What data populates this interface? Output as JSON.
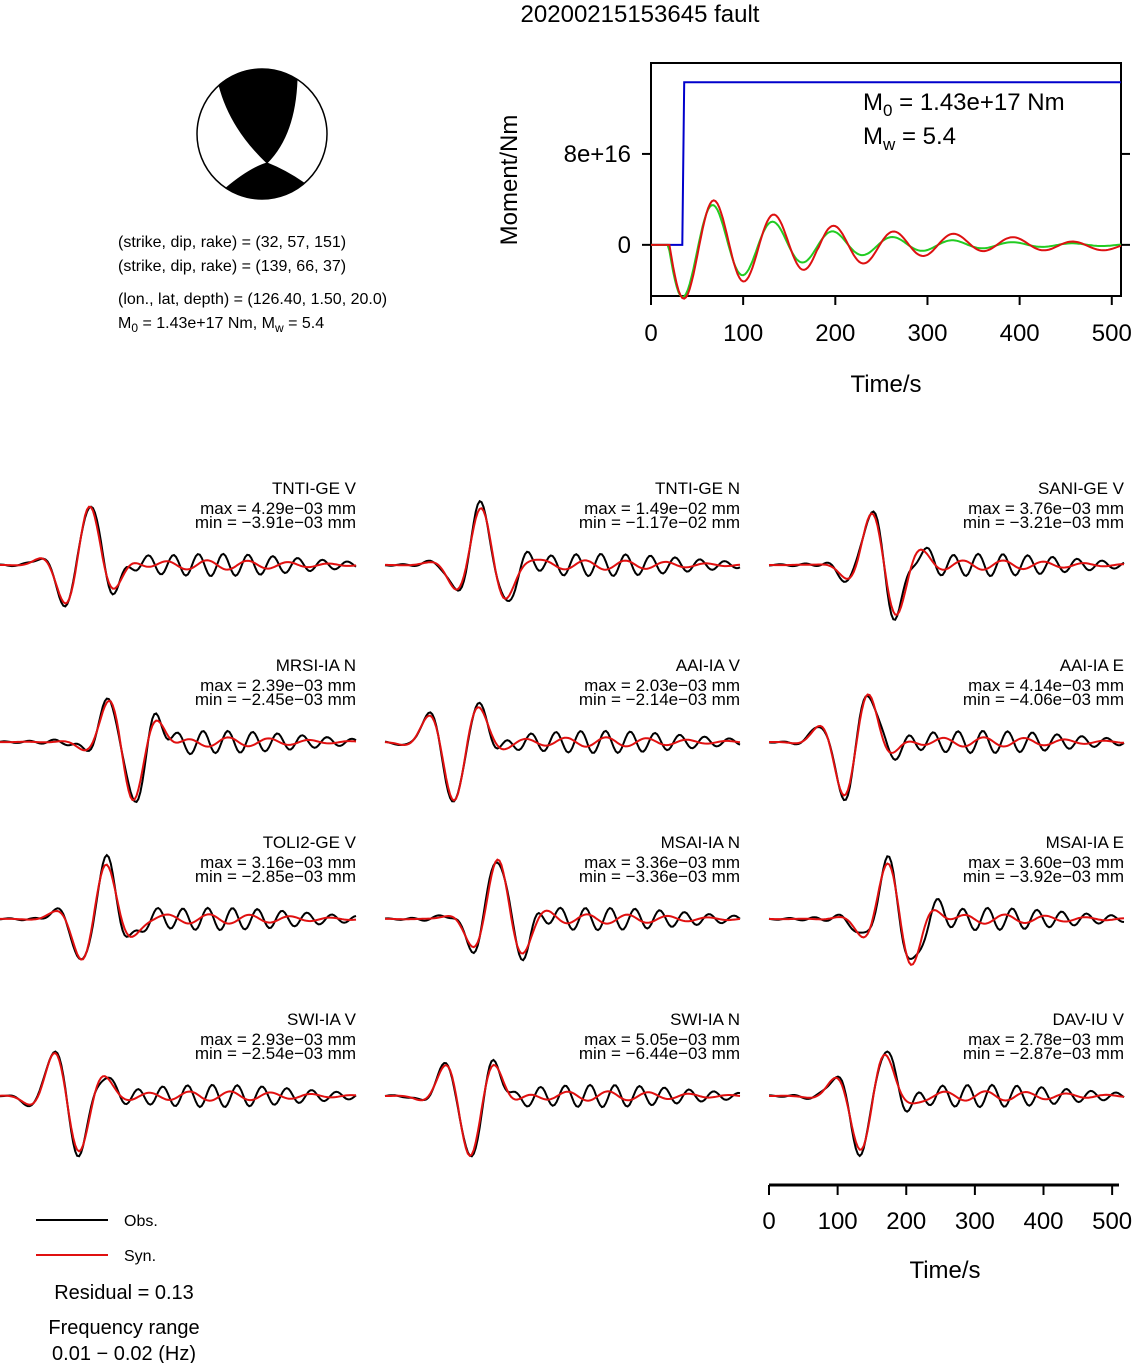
{
  "title": "20200215153645 fault",
  "beachball": {
    "fill": "#000000",
    "background": "#ffffff"
  },
  "info": {
    "line1": "(strike, dip, rake) = (32, 57, 151)",
    "line2": "(strike, dip, rake) = (139, 66, 37)",
    "line3": "(lon., lat, depth) = (126.40, 1.50, 20.0)",
    "line4_pre": "M",
    "line4_sub1": "0",
    "line4_mid": " = 1.43e+17 Nm, M",
    "line4_sub2": "w",
    "line4_post": " = 5.4"
  },
  "moment_plot": {
    "ylabel": "Moment/Nm",
    "xlabel": "Time/s",
    "xticks": [
      "0",
      "100",
      "200",
      "300",
      "400",
      "500"
    ],
    "yticks": [
      "0",
      "8e+16"
    ],
    "m0_pre": "M",
    "m0_sub": "0",
    "m0_post": " = 1.43e+17 Nm",
    "mw_pre": "M",
    "mw_sub": "w",
    "mw_post": " = 5.4"
  },
  "legend": {
    "obs_label": "Obs.",
    "syn_label": "Syn.",
    "residual": "Residual = 0.13",
    "freq_title": "Frequency range",
    "freq_value": "0.01 − 0.02 (Hz)"
  },
  "wave_axis": {
    "xlabel": "Time/s",
    "xticks": [
      "0",
      "100",
      "200",
      "300",
      "400",
      "500"
    ]
  },
  "colors": {
    "observed": "#000000",
    "synthetic": "#e01010",
    "moment": "#0000cc",
    "rate_red": "#dd1111",
    "rate_green": "#22cc22"
  },
  "chart_data": [
    {
      "type": "line",
      "x": [
        0,
        34,
        36,
        40,
        50,
        70,
        100,
        150,
        200,
        300,
        400,
        510
      ],
      "series": [
        {
          "values": [
            0,
            0,
            1.43e+17,
            1.43e+17,
            1.43e+17,
            1.43e+17,
            1.43e+17,
            1.43e+17,
            1.43e+17,
            1.43e+17,
            1.43e+17,
            1.43e+17
          ]
        }
      ],
      "xlabel": "Time/s",
      "ylabel": "Moment/Nm",
      "xlim": [
        0,
        510
      ],
      "ylim": [
        -4.5e+16,
        1.6e+17
      ]
    },
    {
      "type": "line",
      "x_range": [
        0,
        510
      ],
      "xlabel": "Time/s",
      "stations": [
        {
          "name": "TNTI-GE V",
          "max": "max = 4.29e−03 mm",
          "min": "min = −3.91e−03 mm"
        },
        {
          "name": "TNTI-GE N",
          "max": "max = 1.49e−02 mm",
          "min": "min = −1.17e−02 mm"
        },
        {
          "name": "SANI-GE V",
          "max": "max = 3.76e−03 mm",
          "min": "min = −3.21e−03 mm"
        },
        {
          "name": "MRSI-IA N",
          "max": "max = 2.39e−03 mm",
          "min": "min = −2.45e−03 mm"
        },
        {
          "name": "AAI-IA V",
          "max": "max = 2.03e−03 mm",
          "min": "min = −2.14e−03 mm"
        },
        {
          "name": "AAI-IA E",
          "max": "max = 4.14e−03 mm",
          "min": "min = −4.06e−03 mm"
        },
        {
          "name": "TOLI2-GE V",
          "max": "max = 3.16e−03 mm",
          "min": "min = −2.85e−03 mm"
        },
        {
          "name": "MSAI-IA N",
          "max": "max = 3.36e−03 mm",
          "min": "min = −3.36e−03 mm"
        },
        {
          "name": "MSAI-IA E",
          "max": "max = 3.60e−03 mm",
          "min": "min = −3.92e−03 mm"
        },
        {
          "name": "SWI-IA V",
          "max": "max = 2.93e−03 mm",
          "min": "min = −2.54e−03 mm"
        },
        {
          "name": "SWI-IA N",
          "max": "max = 5.05e−03 mm",
          "min": "min = −6.44e−03 mm"
        },
        {
          "name": "DAV-IU V",
          "max": "max = 2.78e−03 mm",
          "min": "min = −2.87e−03 mm"
        }
      ]
    }
  ]
}
